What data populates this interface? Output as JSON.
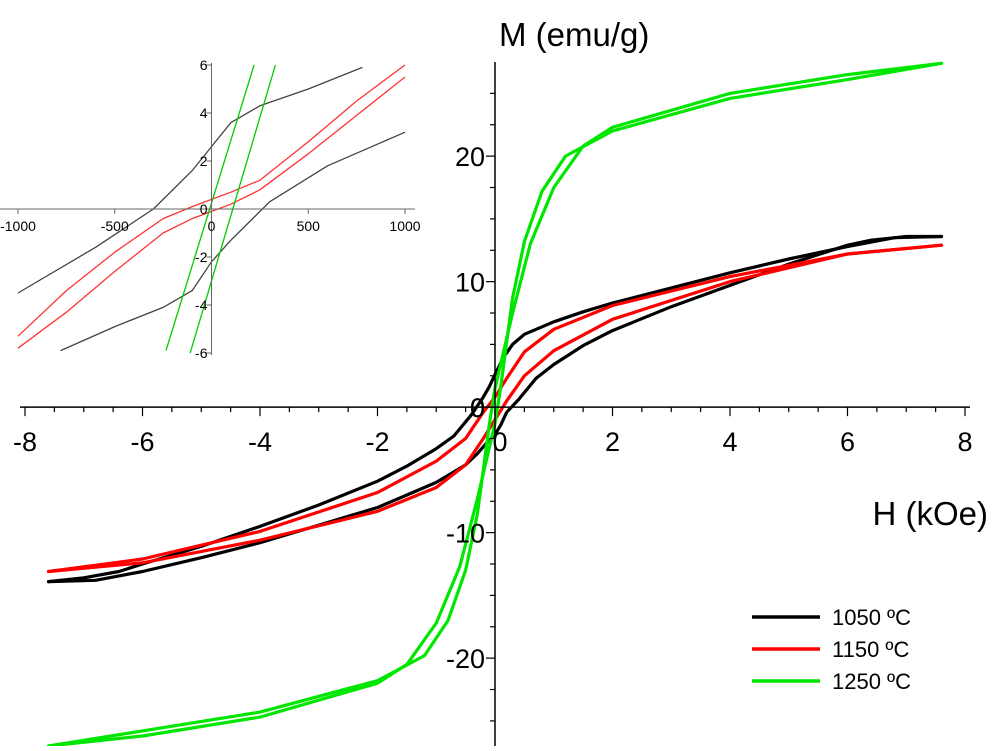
{
  "chart_data": {
    "type": "line",
    "title": "",
    "main": {
      "xlabel": "H (kOe)",
      "ylabel": "M (emu/g)",
      "xlim": [
        -8,
        8
      ],
      "ylim": [
        -27,
        27.5
      ],
      "xticks": [
        -8,
        -6,
        -4,
        -2,
        0,
        2,
        4,
        6,
        8
      ],
      "yticks": [
        -20,
        -10,
        0,
        10,
        20
      ],
      "grid": false,
      "legend_position": "bottom-right",
      "series": [
        {
          "name": "1050 ºC",
          "color": "#000000",
          "branches": [
            {
              "x": [
                7.6,
                6.8,
                6,
                5,
                4,
                3,
                2,
                1.5,
                1,
                0.5,
                0.3,
                0.15,
                0,
                -0.1,
                -0.2,
                -0.4,
                -0.7,
                -1,
                -1.5,
                -2,
                -3,
                -4,
                -5,
                -6,
                -6.4,
                -7,
                -7.6
              ],
              "y": [
                13.6,
                13.5,
                12.8,
                11.8,
                10.7,
                9.5,
                8.3,
                7.6,
                6.8,
                5.8,
                5.0,
                4.0,
                2.6,
                1.6,
                0.8,
                -0.6,
                -2.3,
                -3.3,
                -4.7,
                -5.9,
                -7.8,
                -9.5,
                -11.1,
                -12.5,
                -13.1,
                -13.6,
                -13.9
              ]
            },
            {
              "x": [
                -7.6,
                -6.8,
                -6,
                -5,
                -4,
                -3,
                -2,
                -1.5,
                -1,
                -0.5,
                -0.3,
                -0.15,
                0,
                0.1,
                0.2,
                0.4,
                0.7,
                1,
                1.5,
                2,
                3,
                4,
                5,
                6,
                6.4,
                7,
                7.6
              ],
              "y": [
                -13.9,
                -13.8,
                -13.1,
                -12.0,
                -10.8,
                -9.4,
                -8.0,
                -7.0,
                -6.0,
                -4.6,
                -3.7,
                -2.9,
                -2.2,
                -1.4,
                -0.4,
                0.6,
                2.3,
                3.4,
                4.9,
                6.1,
                8.0,
                9.7,
                11.4,
                12.9,
                13.3,
                13.6,
                13.6
              ]
            }
          ]
        },
        {
          "name": "1150 ºC",
          "color": "#ff0000",
          "branches": [
            {
              "x": [
                7.6,
                6,
                4,
                2,
                1,
                0.5,
                0.2,
                0,
                -0.2,
                -0.5,
                -1,
                -2,
                -4,
                -6,
                -7.6
              ],
              "y": [
                12.9,
                12.2,
                10.4,
                8.1,
                6.2,
                4.4,
                2.3,
                0.8,
                -0.4,
                -2.5,
                -4.3,
                -6.8,
                -9.9,
                -12.1,
                -13.1
              ]
            },
            {
              "x": [
                -7.6,
                -6,
                -4,
                -2,
                -1,
                -0.5,
                -0.2,
                0,
                0.2,
                0.5,
                1,
                2,
                4,
                6,
                7.6
              ],
              "y": [
                -13.1,
                -12.4,
                -10.6,
                -8.3,
                -6.4,
                -4.6,
                -2.5,
                -1.0,
                0.5,
                2.5,
                4.5,
                7.0,
                10.0,
                12.2,
                12.9
              ]
            }
          ]
        },
        {
          "name": "1250 ºC",
          "color": "#00e600",
          "branches": [
            {
              "x": [
                7.6,
                6,
                4,
                2,
                1.5,
                1,
                0.6,
                0.3,
                0.1,
                0,
                -0.1,
                -0.2,
                -0.3,
                -0.5,
                -0.8,
                -1.2,
                -2,
                -4,
                -6,
                -7.6
              ],
              "y": [
                27.4,
                26.5,
                25.0,
                22.3,
                20.8,
                17.5,
                13.0,
                7.5,
                3.5,
                1.5,
                -1.5,
                -5.0,
                -8.5,
                -13.0,
                -17.0,
                -19.8,
                -21.8,
                -24.3,
                -25.8,
                -27.0
              ]
            },
            {
              "x": [
                -7.6,
                -6,
                -4,
                -2,
                -1.5,
                -1,
                -0.6,
                -0.3,
                -0.1,
                0,
                0.1,
                0.2,
                0.3,
                0.5,
                0.8,
                1.2,
                2,
                4,
                6,
                7.6
              ],
              "y": [
                -27.0,
                -26.2,
                -24.7,
                -22.0,
                -20.5,
                -17.2,
                -12.7,
                -7.3,
                -3.3,
                -1.3,
                1.7,
                5.2,
                8.7,
                13.2,
                17.2,
                20.0,
                22.0,
                24.6,
                26.1,
                27.4
              ]
            }
          ]
        }
      ]
    },
    "inset": {
      "xlim": [
        -1000,
        1000
      ],
      "ylim": [
        -6,
        6
      ],
      "xticks": [
        -1000,
        -500,
        0,
        500,
        1000
      ],
      "yticks": [
        -6,
        -4,
        -2,
        0,
        2,
        4,
        6
      ],
      "series": [
        {
          "name": "1050 ºC",
          "color": "#444444",
          "branches": [
            {
              "x": [
                780,
                500,
                250,
                100,
                0,
                -100,
                -300,
                -600,
                -1000
              ],
              "y": [
                5.9,
                5.0,
                4.3,
                3.6,
                2.6,
                1.6,
                0.0,
                -1.6,
                -3.5
              ]
            },
            {
              "x": [
                -780,
                -500,
                -250,
                -100,
                0,
                100,
                300,
                600,
                1000
              ],
              "y": [
                -5.9,
                -4.9,
                -4.1,
                -3.4,
                -2.2,
                -1.3,
                0.3,
                1.8,
                3.2
              ]
            }
          ]
        },
        {
          "name": "1150 ºC",
          "color": "#ff3333",
          "branches": [
            {
              "x": [
                1000,
                750,
                500,
                250,
                100,
                0,
                -100,
                -250,
                -500,
                -750,
                -1000
              ],
              "y": [
                6.0,
                4.5,
                2.8,
                1.2,
                0.7,
                0.4,
                0.1,
                -0.4,
                -1.8,
                -3.4,
                -5.3
              ]
            },
            {
              "x": [
                -1000,
                -750,
                -500,
                -250,
                -100,
                0,
                100,
                250,
                500,
                750,
                1000
              ],
              "y": [
                -5.8,
                -4.3,
                -2.6,
                -1.0,
                -0.4,
                -0.1,
                0.2,
                0.8,
                2.3,
                3.9,
                5.5
              ]
            }
          ]
        },
        {
          "name": "1250 ºC",
          "color": "#00cc00",
          "branches": [
            {
              "x": [
                -235,
                220
              ],
              "y": [
                -5.9,
                6.0
              ]
            },
            {
              "x": [
                -110,
                330
              ],
              "y": [
                -6.0,
                6.0
              ]
            }
          ]
        }
      ]
    }
  }
}
